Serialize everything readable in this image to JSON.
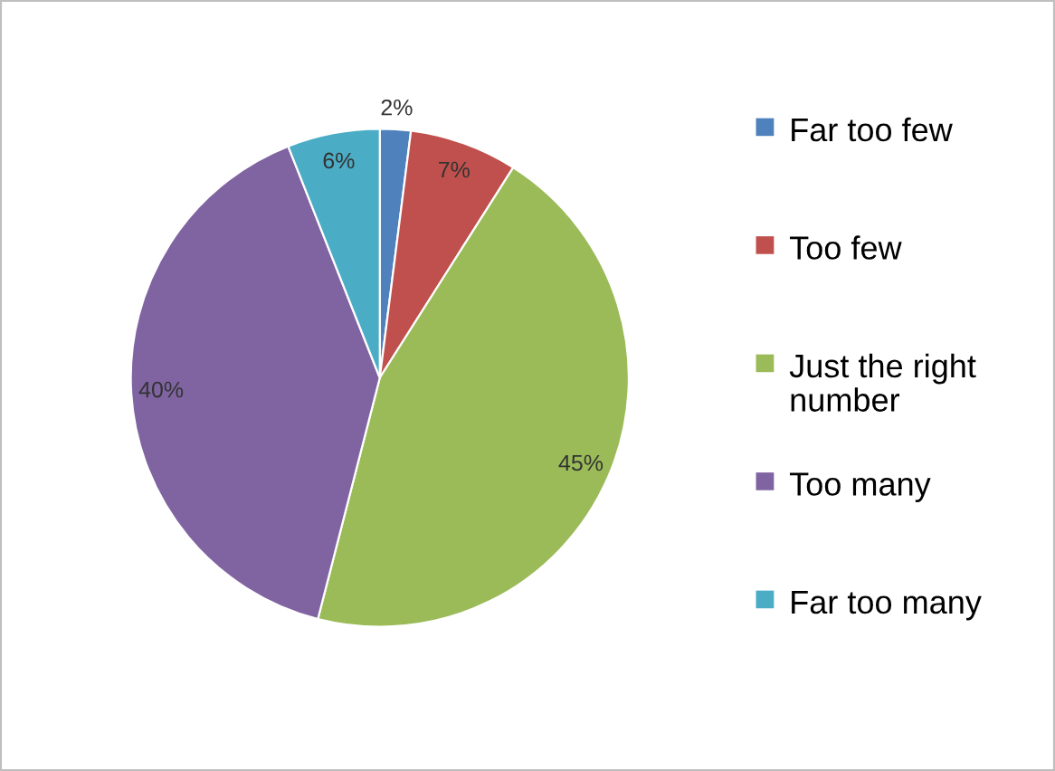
{
  "chart_data": {
    "type": "pie",
    "categories": [
      "Far too few",
      "Too few",
      "Just the right number",
      "Too many",
      "Far too many"
    ],
    "values": [
      2,
      7,
      45,
      40,
      6
    ],
    "value_labels": [
      "2%",
      "7%",
      "45%",
      "40%",
      "6%"
    ],
    "colors": [
      "#4f81bd",
      "#c0504d",
      "#9bbb59",
      "#8064a2",
      "#4bacc6"
    ],
    "legend": "right"
  }
}
